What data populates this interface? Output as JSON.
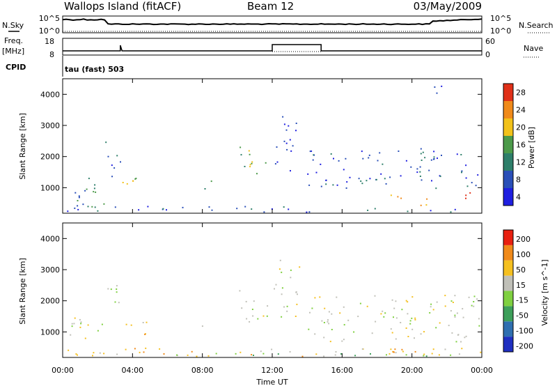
{
  "header": {
    "site": "Wallops Island (fitACF)",
    "beam": "Beam 12",
    "date": "03/May/2009"
  },
  "side_labels": {
    "nsky": "N.Sky",
    "freq_line1": "Freq.",
    "freq_line2": "[MHz]",
    "cpid": "CPID",
    "nsearch": "N.Search",
    "nave": "Nave",
    "cpid_value": "tau (fast) 503"
  },
  "noise_panel": {
    "left_ticks": [
      "10^5",
      "10^0"
    ],
    "right_ticks": [
      "10^5",
      "10^0"
    ]
  },
  "freq_panel": {
    "left_ticks": [
      "18",
      "8"
    ],
    "right_ticks": [
      "60",
      "0"
    ]
  },
  "chart_data": [
    {
      "type": "heatmap",
      "title": "",
      "ylabel": "Slant Range [km]",
      "xlabel": "",
      "ylim": [
        180,
        4500
      ],
      "y_ticks": [
        "1000",
        "2000",
        "3000",
        "4000"
      ],
      "colorbar": {
        "label": "Power [dB]",
        "ticks": [
          "4",
          "8",
          "12",
          "16",
          "20",
          "24",
          "28"
        ],
        "colors": [
          "#1f1fe0",
          "#2a4fb8",
          "#2e7f6a",
          "#4c9a4a",
          "#f2c21a",
          "#f08a1a",
          "#e03018"
        ]
      },
      "regions": [
        {
          "t0": 0.2,
          "t1": 2.4,
          "r0": 250,
          "r1": 1500,
          "level": 2
        },
        {
          "t0": 2.4,
          "t1": 3.3,
          "r0": 1300,
          "r1": 2600,
          "level": 1
        },
        {
          "t0": 3.3,
          "t1": 5.2,
          "r0": 900,
          "r1": 1400,
          "level": 4
        },
        {
          "t0": 7.8,
          "t1": 8.6,
          "r0": 950,
          "r1": 1300,
          "level": 2
        },
        {
          "t0": 10.0,
          "t1": 11.8,
          "r0": 1400,
          "r1": 2400,
          "level": 3
        },
        {
          "t0": 12.0,
          "t1": 13.4,
          "r0": 1500,
          "r1": 3300,
          "level": 0
        },
        {
          "t0": 14.0,
          "t1": 24.0,
          "r0": 1000,
          "r1": 2200,
          "level": 1
        },
        {
          "t0": 18.6,
          "t1": 20.0,
          "r0": 600,
          "r1": 900,
          "level": 5
        },
        {
          "t0": 20.4,
          "t1": 22.0,
          "r0": 400,
          "r1": 700,
          "level": 4
        },
        {
          "t0": 22.0,
          "t1": 23.4,
          "r0": 550,
          "r1": 900,
          "level": 6
        },
        {
          "t0": 20.3,
          "t1": 21.5,
          "r0": 1800,
          "r1": 2300,
          "level": 2
        },
        {
          "t0": 21.2,
          "t1": 22.0,
          "r0": 3800,
          "r1": 4400,
          "level": 1
        },
        {
          "t0": 0.0,
          "t1": 24.0,
          "r0": 180,
          "r1": 420,
          "level": 1
        }
      ]
    },
    {
      "type": "heatmap",
      "title": "",
      "ylabel": "Slant Range [km]",
      "xlabel": "Time UT",
      "ylim": [
        180,
        4500
      ],
      "y_ticks": [
        "1000",
        "2000",
        "3000",
        "4000"
      ],
      "x_ticks": [
        "00:00",
        "04:00",
        "08:00",
        "12:00",
        "16:00",
        "20:00",
        "00:00"
      ],
      "xlim": [
        0,
        24
      ],
      "colorbar": {
        "label": "Velocity [m s^-1]",
        "ticks": [
          "200",
          "100",
          "50",
          "15",
          "-15",
          "-50",
          "-100",
          "-200"
        ],
        "colors": [
          "#1f2fc0",
          "#2f6fb0",
          "#3d9f5a",
          "#7fd040",
          "#c0c0b8",
          "#f5c020",
          "#f08a1a",
          "#e82010"
        ]
      },
      "regions": [
        {
          "t0": 0.2,
          "t1": 2.4,
          "r0": 300,
          "r1": 1500,
          "level": 4
        },
        {
          "t0": 2.4,
          "t1": 3.3,
          "r0": 1300,
          "r1": 2600,
          "level": 4
        },
        {
          "t0": 3.3,
          "t1": 5.2,
          "r0": 900,
          "r1": 1400,
          "level": 5
        },
        {
          "t0": 7.8,
          "t1": 8.5,
          "r0": 1000,
          "r1": 1300,
          "level": 3
        },
        {
          "t0": 10.0,
          "t1": 11.8,
          "r0": 1300,
          "r1": 2400,
          "level": 4
        },
        {
          "t0": 12.0,
          "t1": 13.6,
          "r0": 1500,
          "r1": 3400,
          "level": 4
        },
        {
          "t0": 14.0,
          "t1": 24.0,
          "r0": 700,
          "r1": 2200,
          "level": 4
        },
        {
          "t0": 0.0,
          "t1": 24.0,
          "r0": 180,
          "r1": 500,
          "level": 5
        },
        {
          "t0": 0.0,
          "t1": 24.0,
          "r0": 180,
          "r1": 350,
          "level": 3
        }
      ]
    }
  ]
}
